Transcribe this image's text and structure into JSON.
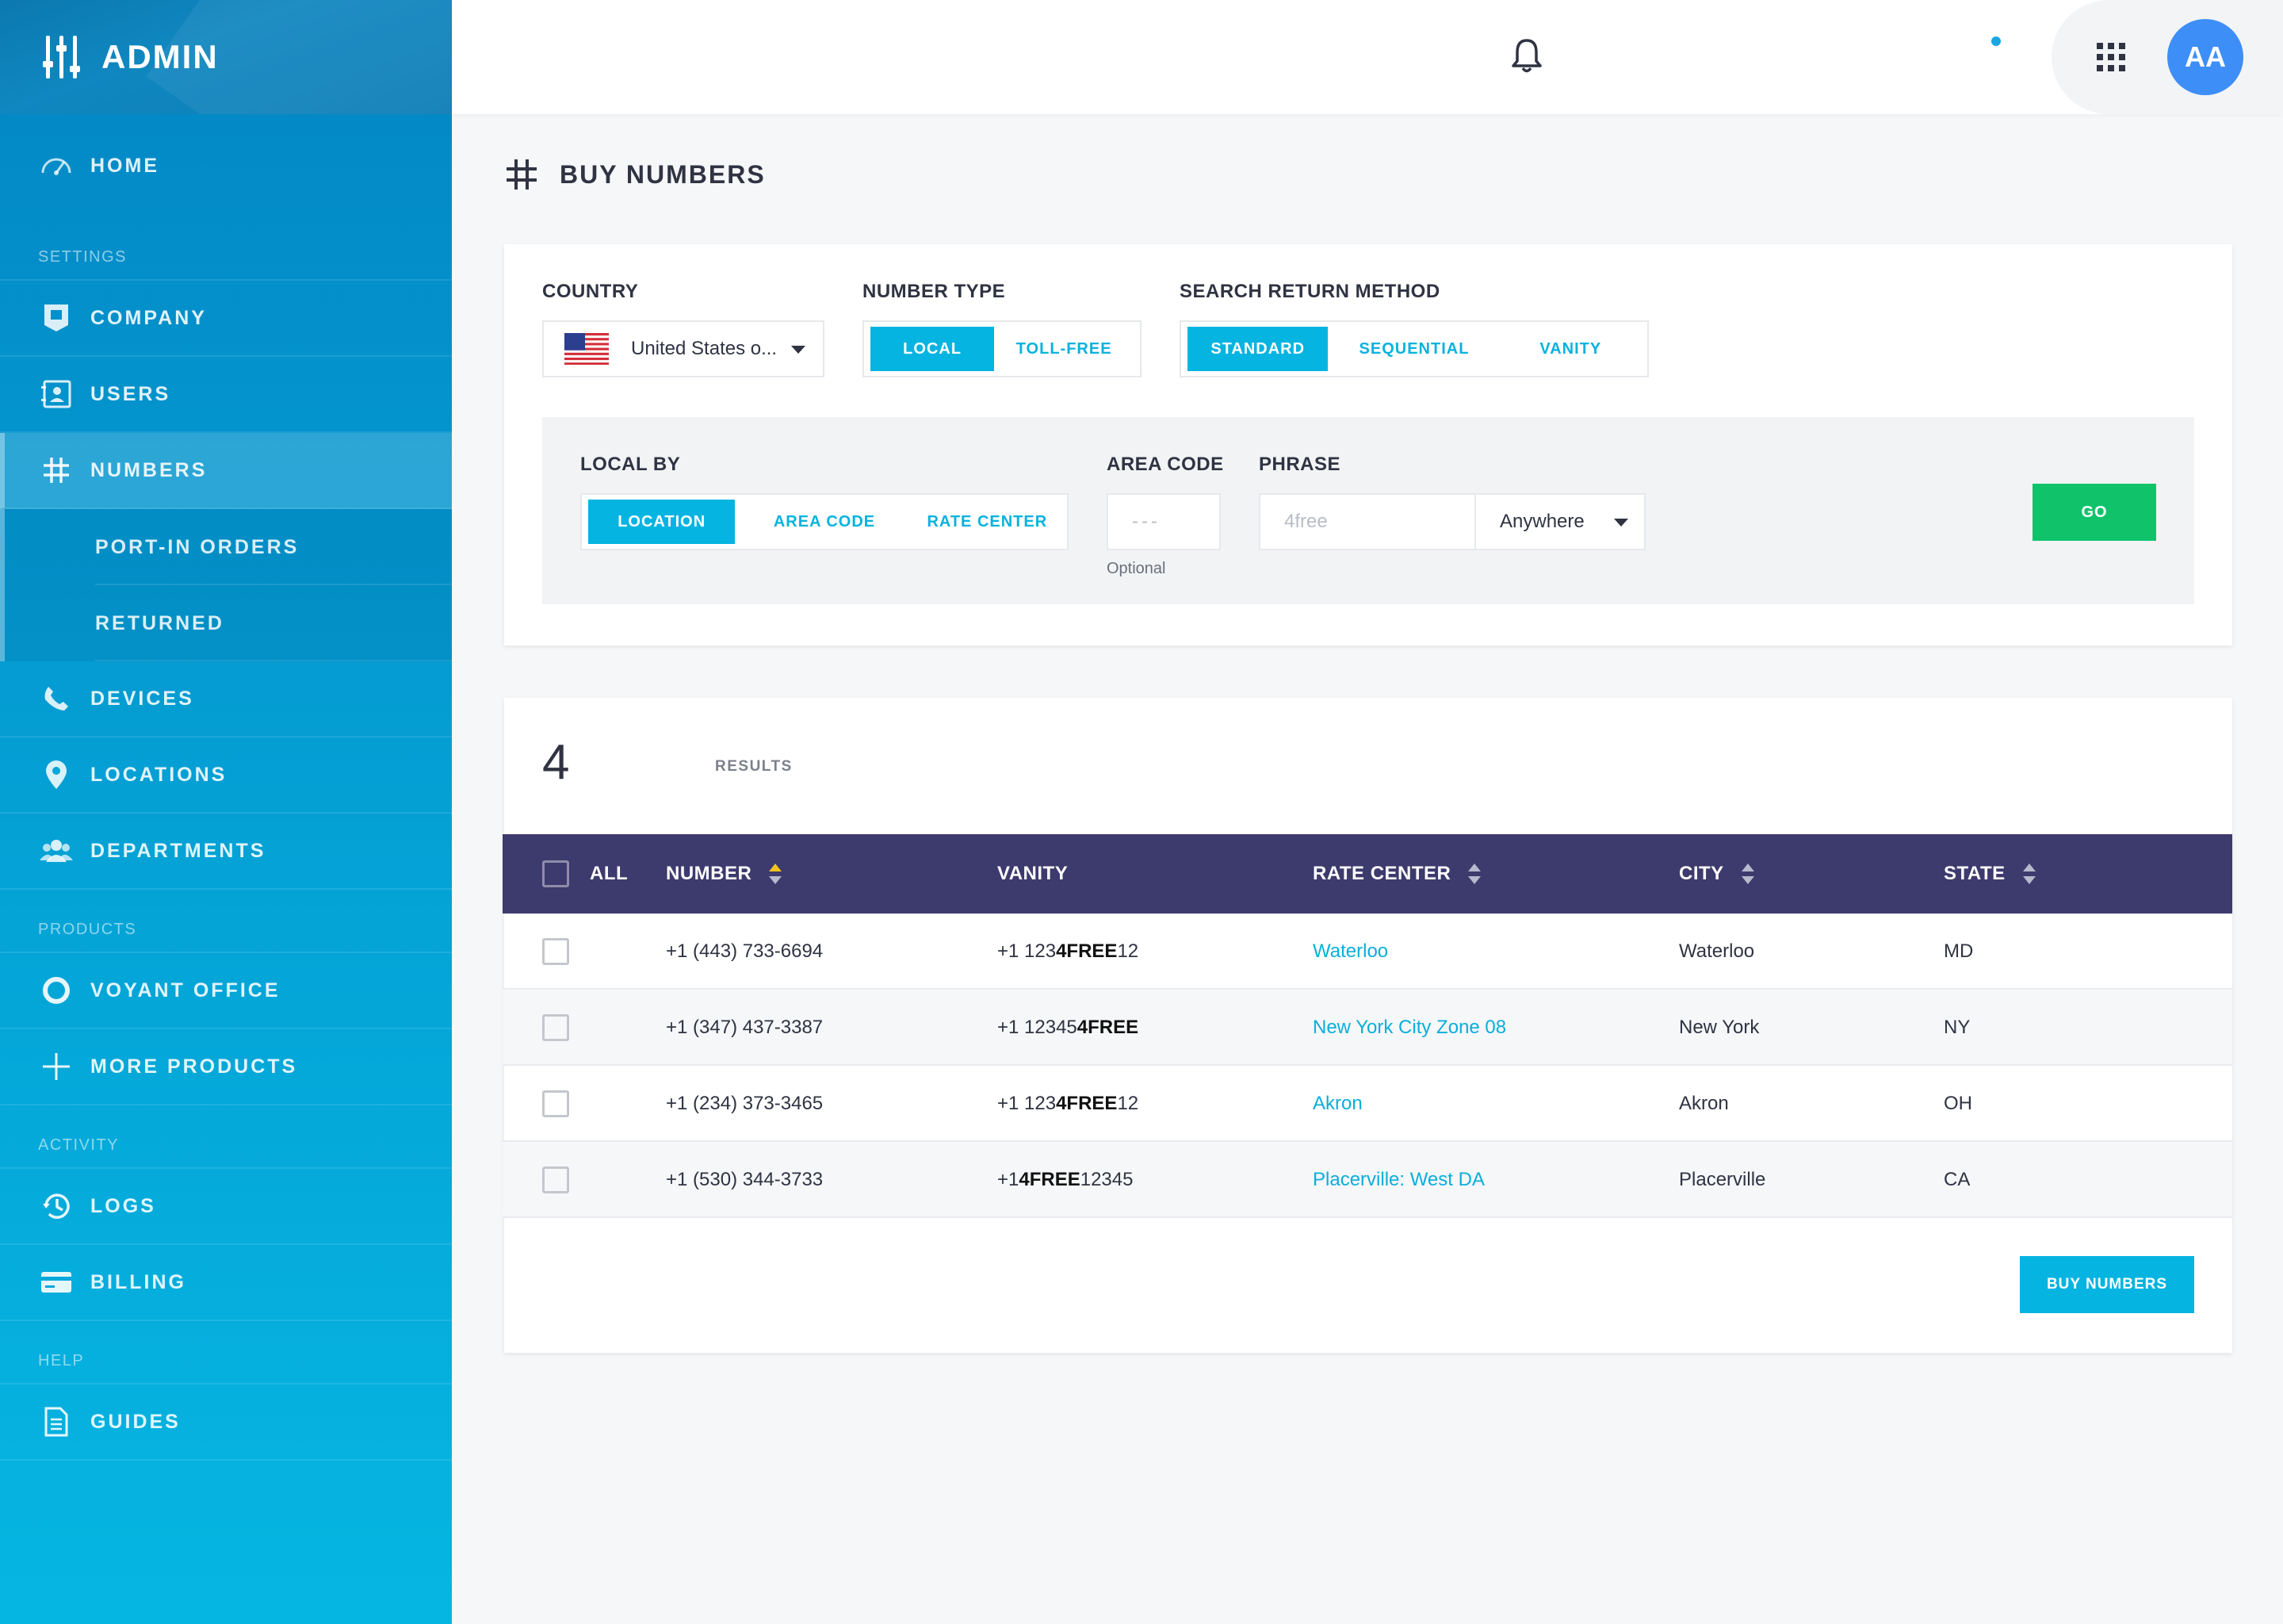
{
  "brand": {
    "title": "ADMIN"
  },
  "sidebar": {
    "home": "HOME",
    "sections": {
      "settings": "SETTINGS",
      "products": "PRODUCTS",
      "activity": "ACTIVITY",
      "help": "HELP"
    },
    "items": {
      "company": "COMPANY",
      "users": "USERS",
      "numbers": "NUMBERS",
      "port_in_orders": "PORT-IN ORDERS",
      "returned": "RETURNED",
      "devices": "DEVICES",
      "locations": "LOCATIONS",
      "departments": "DEPARTMENTS",
      "voyant_office": "VOYANT OFFICE",
      "more_products": "MORE PRODUCTS",
      "logs": "LOGS",
      "billing": "BILLING",
      "guides": "GUIDES"
    }
  },
  "header": {
    "avatar_initials": "AA"
  },
  "page": {
    "title": "BUY NUMBERS"
  },
  "search": {
    "country_label": "COUNTRY",
    "country_value": "United States o...",
    "number_type_label": "NUMBER TYPE",
    "number_type_options": [
      "LOCAL",
      "TOLL-FREE"
    ],
    "return_method_label": "SEARCH RETURN METHOD",
    "return_method_options": [
      "STANDARD",
      "SEQUENTIAL",
      "VANITY"
    ],
    "local_by_label": "LOCAL BY",
    "local_by_options": [
      "LOCATION",
      "AREA CODE",
      "RATE CENTER"
    ],
    "area_code_label": "AREA CODE",
    "area_code_placeholder": "---",
    "area_code_hint": "Optional",
    "phrase_label": "PHRASE",
    "phrase_placeholder": "4free",
    "phrase_position": "Anywhere",
    "go_label": "GO"
  },
  "results": {
    "count": "4",
    "label": "RESULTS",
    "columns": {
      "all": "ALL",
      "number": "NUMBER",
      "vanity": "VANITY",
      "rate_center": "RATE CENTER",
      "city": "CITY",
      "state": "STATE"
    },
    "rows": [
      {
        "number": "+1 (443) 733-6694",
        "vanity_pre": "+1 123",
        "vanity_bold": "4FREE",
        "vanity_post": "12",
        "rate_center": "Waterloo",
        "city": "Waterloo",
        "state": "MD"
      },
      {
        "number": "+1 (347) 437-3387",
        "vanity_pre": "+1 12345",
        "vanity_bold": "4FREE",
        "vanity_post": "",
        "rate_center": "New York City Zone 08",
        "city": "New York",
        "state": "NY"
      },
      {
        "number": "+1 (234) 373-3465",
        "vanity_pre": "+1 123",
        "vanity_bold": "4FREE",
        "vanity_post": "12",
        "rate_center": "Akron",
        "city": "Akron",
        "state": "OH"
      },
      {
        "number": "+1 (530) 344-3733",
        "vanity_pre": "+1 ",
        "vanity_bold": "4FREE",
        "vanity_post": "12345",
        "rate_center": "Placerville: West DA",
        "city": "Placerville",
        "state": "CA"
      }
    ],
    "buy_label": "BUY NUMBERS"
  },
  "colors": {
    "sidebar_top": "#0386c4",
    "sidebar_bottom": "#06b6e2",
    "accent": "#05b4e0",
    "go_green": "#10c36b",
    "table_header": "#3d3a6e",
    "avatar": "#3e8ef7",
    "sort_active": "#f5c41b"
  },
  "icons": [
    "sliders-icon",
    "speedometer-icon",
    "building-icon",
    "contacts-icon",
    "hash-icon",
    "phone-icon",
    "location-pin-icon",
    "people-icon",
    "circle-icon",
    "plus-icon",
    "history-icon",
    "credit-card-icon",
    "document-icon",
    "bell-icon",
    "apps-grid-icon",
    "flag-us-icon"
  ]
}
